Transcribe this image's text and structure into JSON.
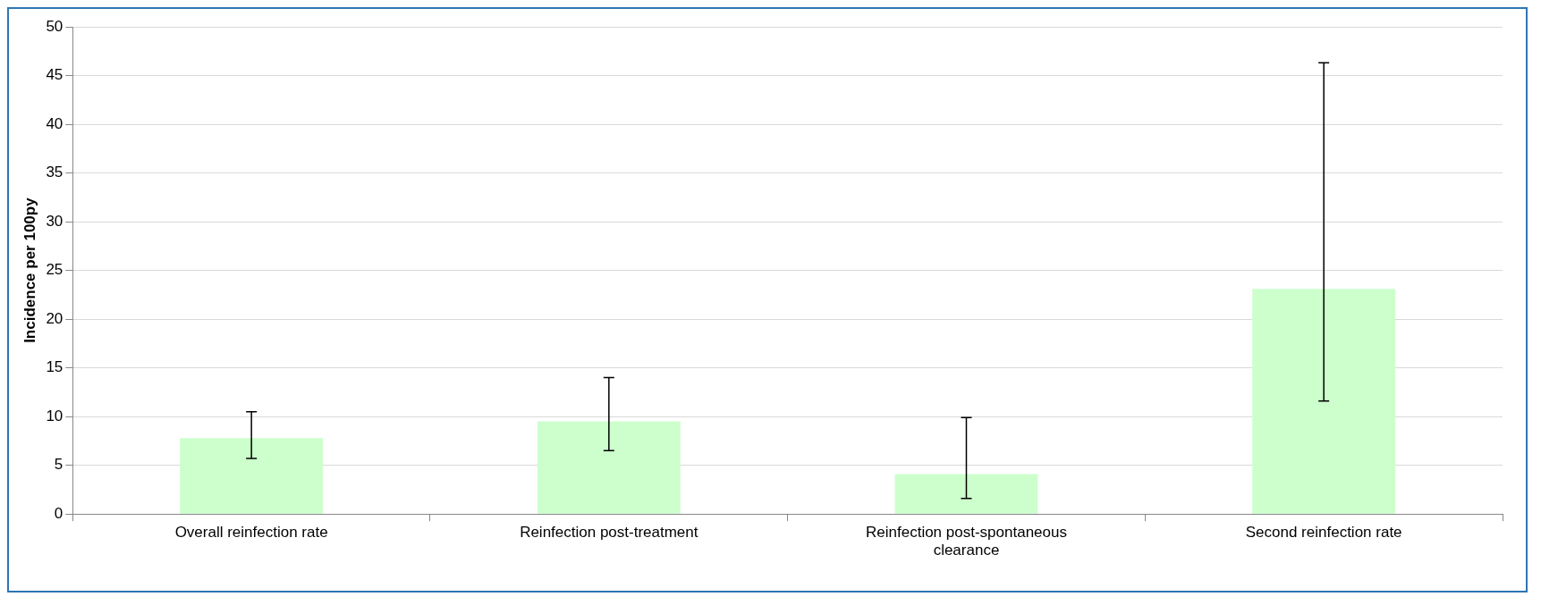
{
  "chart_data": {
    "type": "bar",
    "ylabel": "Incidence per 100py",
    "categories": [
      "Overall reinfection rate",
      "Reinfection post-treatment",
      "Reinfection post-spontaneous clearance",
      "Second reinfection rate"
    ],
    "values": [
      7.8,
      9.5,
      4.1,
      23.1
    ],
    "errors": [
      [
        5.7,
        10.5
      ],
      [
        6.5,
        14.0
      ],
      [
        1.6,
        9.9
      ],
      [
        11.6,
        46.3
      ]
    ],
    "color": "#ccffcc",
    "ylim": [
      0,
      50
    ],
    "yticks": [
      0,
      5,
      10,
      15,
      20,
      25,
      30,
      35,
      40,
      45,
      50
    ],
    "grid": "y",
    "legend": false
  }
}
